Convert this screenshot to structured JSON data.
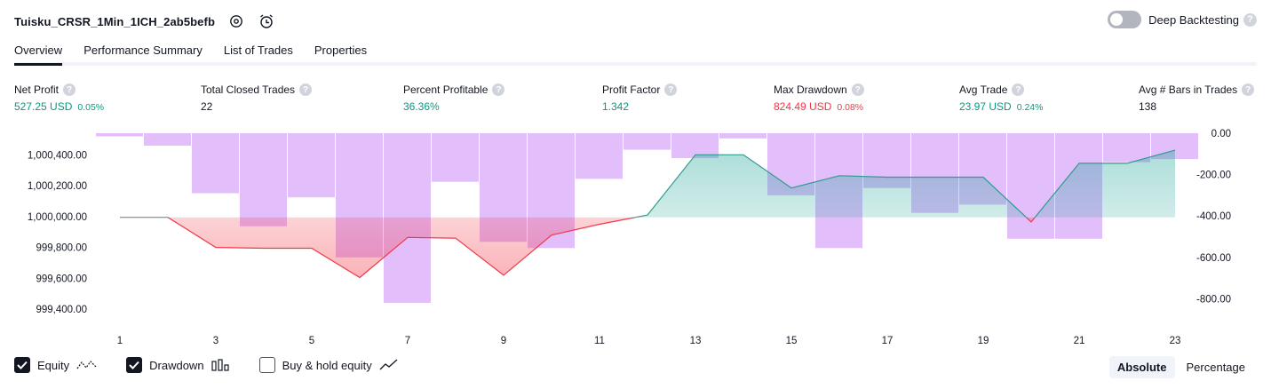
{
  "header": {
    "title": "Tuisku_CRSR_1Min_1ICH_2ab5befb",
    "deep_backtesting_label": "Deep Backtesting",
    "deep_backtesting_on": false,
    "help_glyph": "?"
  },
  "tabs": [
    {
      "label": "Overview",
      "active": true
    },
    {
      "label": "Performance Summary",
      "active": false
    },
    {
      "label": "List of Trades",
      "active": false
    },
    {
      "label": "Properties",
      "active": false
    }
  ],
  "metrics": {
    "net_profit": {
      "label": "Net Profit",
      "value": "527.25 USD",
      "pct": "0.05%"
    },
    "total_closed_trades": {
      "label": "Total Closed Trades",
      "value": "22"
    },
    "percent_profitable": {
      "label": "Percent Profitable",
      "value": "36.36%"
    },
    "profit_factor": {
      "label": "Profit Factor",
      "value": "1.342"
    },
    "max_drawdown": {
      "label": "Max Drawdown",
      "value": "824.49 USD",
      "pct": "0.08%"
    },
    "avg_trade": {
      "label": "Avg Trade",
      "value": "23.97 USD",
      "pct": "0.24%"
    },
    "avg_bars": {
      "label": "Avg # Bars in Trades",
      "value": "138"
    }
  },
  "colors": {
    "green": "#089981",
    "red": "#f23645",
    "drawdown_bar": "#ce93f8",
    "equity_line_up": "#2e9c8c",
    "equity_line_down": "#f23645"
  },
  "chart_data": {
    "type": "line",
    "x": [
      1,
      2,
      3,
      4,
      5,
      6,
      7,
      8,
      9,
      10,
      11,
      12,
      13,
      14,
      15,
      16,
      17,
      18,
      19,
      20,
      21,
      22,
      23
    ],
    "x_tick_labels": [
      "1",
      "3",
      "5",
      "7",
      "9",
      "11",
      "13",
      "15",
      "17",
      "19",
      "21",
      "23"
    ],
    "series": [
      {
        "values": [
          999995,
          999995,
          999800,
          999795,
          999795,
          999605,
          999865,
          999860,
          999620,
          999880,
          999950,
          1000010,
          1000400,
          1000400,
          1000185,
          1000265,
          1000255,
          1000255,
          1000255,
          999965,
          1000345,
          1000345,
          1000430
        ]
      },
      {
        "values": [
          -15,
          -60,
          -290,
          -450,
          -310,
          -600,
          -820,
          -235,
          -525,
          -555,
          -220,
          -80,
          -120,
          -25,
          -300,
          -555,
          -265,
          -385,
          -345,
          -510,
          -510,
          -140,
          -125
        ]
      }
    ],
    "left_axis": {
      "ticks": [
        "1,000,400.00",
        "1,000,200.00",
        "1,000,000.00",
        "999,800.00",
        "999,600.00",
        "999,400.00"
      ],
      "ylim": [
        999320,
        1000540
      ]
    },
    "right_axis": {
      "ticks": [
        "0.00",
        "-200.00",
        "-400.00",
        "-600.00",
        "-800.00"
      ],
      "ylim": [
        -910,
        0
      ]
    },
    "baseline": 999995
  },
  "footer": {
    "equity_label": "Equity",
    "equity_checked": true,
    "drawdown_label": "Drawdown",
    "drawdown_checked": true,
    "buyhold_label": "Buy & hold equity",
    "buyhold_checked": false,
    "absolute_label": "Absolute",
    "percentage_label": "Percentage"
  }
}
